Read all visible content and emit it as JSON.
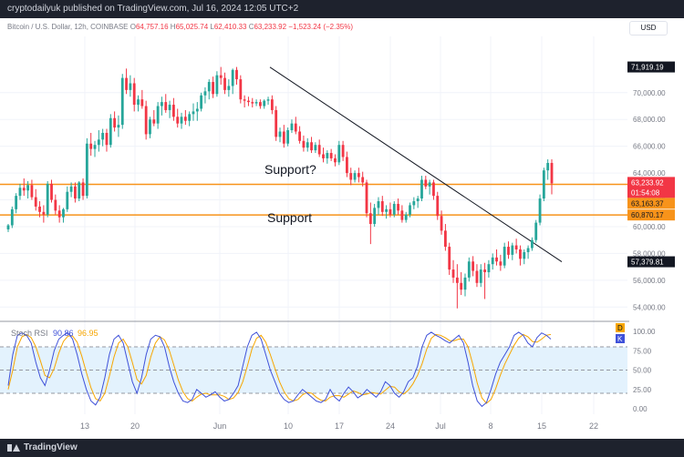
{
  "header": {
    "published_text": "cryptodailyuk published on TradingView.com, Jul 16, 2024 12:05 UTC+2"
  },
  "footer": {
    "brand": "TradingView"
  },
  "symbol_bar": {
    "title": "Bitcoin / U.S. Dollar, 12h, COINBASE",
    "o_label": "O",
    "o_value": "64,757.16",
    "h_label": "H",
    "h_value": "65,025.74",
    "l_label": "L",
    "l_value": "62,410.33",
    "c_label": "C",
    "c_value": "63,233.92",
    "change": "−1,523.24 (−2.35%)"
  },
  "currency_button": "USD",
  "colors": {
    "up": "#26a69a",
    "down": "#f23645",
    "support": "#f7931a",
    "stoch_d": "#f7a600",
    "stoch_k": "#3f51d9",
    "rsi_band": "#e3f2fd"
  },
  "chart_data": [
    {
      "type": "candlestick",
      "title": "Bitcoin / U.S. Dollar, 12h, COINBASE",
      "ylim": [
        53000,
        74200
      ],
      "y_ticks": [
        "70,000.00",
        "68,000.00",
        "66,000.00",
        "64,000.00",
        "62,000.00",
        "60,000.00",
        "58,000.00",
        "56,000.00",
        "54,000.00"
      ],
      "x_ticks": [
        "13",
        "20",
        "Jun",
        "10",
        "17",
        "24",
        "Jul",
        "8",
        "15",
        "22"
      ],
      "price_labels": {
        "high": "71,919.19",
        "last": "63,233.92",
        "countdown": "01:54:08",
        "second": "63,163.37",
        "support": "60,870.17",
        "low": "57,379.81"
      },
      "annotations": [
        "Support?",
        "Support"
      ],
      "support_levels": [
        63160,
        60870
      ],
      "trendline": [
        {
          "x": "Jun 5",
          "y": 71900
        },
        {
          "x": "Jul 17",
          "y": 57380
        }
      ],
      "candles": [
        [
          59800,
          60200,
          59600,
          60100
        ],
        [
          60100,
          61500,
          59900,
          61300
        ],
        [
          61300,
          62500,
          61000,
          62300
        ],
        [
          62300,
          63200,
          62000,
          62900
        ],
        [
          62900,
          63600,
          62300,
          62700
        ],
        [
          62700,
          63400,
          62100,
          63100
        ],
        [
          63100,
          63500,
          62000,
          62200
        ],
        [
          62200,
          62800,
          61200,
          61500
        ],
        [
          61500,
          61900,
          60700,
          61100
        ],
        [
          61100,
          61600,
          60300,
          60900
        ],
        [
          60900,
          63400,
          60700,
          63200
        ],
        [
          63200,
          63500,
          61800,
          62000
        ],
        [
          62000,
          62400,
          60900,
          61200
        ],
        [
          61200,
          61600,
          60300,
          60700
        ],
        [
          60700,
          61400,
          60300,
          61300
        ],
        [
          61300,
          63000,
          61100,
          62600
        ],
        [
          62600,
          63300,
          62200,
          63000
        ],
        [
          63000,
          63300,
          61800,
          62100
        ],
        [
          62100,
          63400,
          61900,
          63300
        ],
        [
          63300,
          63600,
          62000,
          62300
        ],
        [
          62300,
          66600,
          62100,
          66200
        ],
        [
          66200,
          67000,
          65300,
          65800
        ],
        [
          65800,
          66400,
          65200,
          66100
        ],
        [
          66100,
          67200,
          65600,
          66500
        ],
        [
          66500,
          67300,
          66000,
          67000
        ],
        [
          67000,
          67300,
          65600,
          66100
        ],
        [
          66100,
          68400,
          65900,
          68100
        ],
        [
          68100,
          68600,
          67100,
          67400
        ],
        [
          67400,
          68300,
          66700,
          67600
        ],
        [
          67600,
          71400,
          67300,
          71100
        ],
        [
          71100,
          71800,
          69900,
          70200
        ],
        [
          70200,
          71300,
          69700,
          70700
        ],
        [
          70700,
          71100,
          68600,
          69100
        ],
        [
          69100,
          69800,
          68600,
          69500
        ],
        [
          69500,
          70200,
          68800,
          69000
        ],
        [
          69000,
          69400,
          66500,
          66900
        ],
        [
          66900,
          68200,
          66600,
          68000
        ],
        [
          68000,
          68700,
          67500,
          67700
        ],
        [
          67700,
          69300,
          67300,
          69000
        ],
        [
          69000,
          69700,
          68300,
          69300
        ],
        [
          69300,
          69900,
          68500,
          68700
        ],
        [
          68700,
          69400,
          68100,
          69100
        ],
        [
          69100,
          69600,
          67900,
          68200
        ],
        [
          68200,
          68800,
          67400,
          67700
        ],
        [
          67700,
          68500,
          67300,
          68200
        ],
        [
          68200,
          68700,
          67600,
          67900
        ],
        [
          67900,
          68600,
          67500,
          68400
        ],
        [
          68400,
          69200,
          67900,
          68600
        ],
        [
          68600,
          69300,
          67900,
          68800
        ],
        [
          68800,
          70000,
          68600,
          69800
        ],
        [
          69800,
          70400,
          69200,
          70100
        ],
        [
          70100,
          71000,
          69500,
          70800
        ],
        [
          70800,
          71200,
          69600,
          69900
        ],
        [
          69900,
          71600,
          69700,
          71300
        ],
        [
          71300,
          71919,
          70600,
          71100
        ],
        [
          71100,
          71500,
          69900,
          70200
        ],
        [
          70200,
          71000,
          69700,
          70500
        ],
        [
          70500,
          71800,
          69900,
          71700
        ],
        [
          71700,
          71919,
          70600,
          71000
        ],
        [
          71000,
          71300,
          69200,
          69500
        ],
        [
          69500,
          69800,
          68900,
          69400
        ],
        [
          69400,
          69700,
          69000,
          69300
        ],
        [
          69300,
          69600,
          68900,
          69200
        ],
        [
          69200,
          69500,
          69000,
          69300
        ],
        [
          69300,
          69500,
          68800,
          69000
        ],
        [
          69000,
          69500,
          68800,
          69400
        ],
        [
          69400,
          69700,
          69100,
          69500
        ],
        [
          69500,
          69800,
          68400,
          68700
        ],
        [
          68700,
          69000,
          66400,
          66700
        ],
        [
          66700,
          67400,
          66300,
          67100
        ],
        [
          67100,
          67600,
          65900,
          66200
        ],
        [
          66200,
          67400,
          66000,
          67200
        ],
        [
          67200,
          68000,
          67000,
          67700
        ],
        [
          67700,
          68200,
          66900,
          67100
        ],
        [
          67100,
          67500,
          66200,
          66400
        ],
        [
          66400,
          66800,
          65600,
          65900
        ],
        [
          65900,
          66600,
          65600,
          66300
        ],
        [
          66300,
          66700,
          65500,
          65700
        ],
        [
          65700,
          66300,
          65500,
          66100
        ],
        [
          66100,
          66500,
          65200,
          65400
        ],
        [
          65400,
          65900,
          64800,
          65100
        ],
        [
          65100,
          65700,
          64700,
          65500
        ],
        [
          65500,
          65800,
          64900,
          65100
        ],
        [
          65100,
          65400,
          64500,
          64800
        ],
        [
          64800,
          66400,
          64600,
          66100
        ],
        [
          66100,
          66400,
          64900,
          65200
        ],
        [
          65200,
          65600,
          63700,
          64000
        ],
        [
          64000,
          64400,
          63100,
          63500
        ],
        [
          63500,
          64200,
          63300,
          64000
        ],
        [
          64000,
          64400,
          63300,
          63700
        ],
        [
          63700,
          64100,
          63000,
          63300
        ],
        [
          63300,
          63500,
          60700,
          61000
        ],
        [
          61000,
          61800,
          58700,
          60200
        ],
        [
          60200,
          61700,
          60000,
          61400
        ],
        [
          61400,
          62200,
          60900,
          61900
        ],
        [
          61900,
          62300,
          60800,
          61100
        ],
        [
          61100,
          61600,
          60600,
          61300
        ],
        [
          61300,
          61800,
          60700,
          60900
        ],
        [
          60900,
          61900,
          60700,
          61700
        ],
        [
          61700,
          62100,
          60900,
          61200
        ],
        [
          61200,
          61600,
          60300,
          60500
        ],
        [
          60500,
          61100,
          60300,
          60900
        ],
        [
          60900,
          61800,
          60700,
          61600
        ],
        [
          61600,
          62200,
          61300,
          61900
        ],
        [
          61900,
          62300,
          61400,
          62100
        ],
        [
          62100,
          63800,
          61900,
          63500
        ],
        [
          63500,
          63800,
          62800,
          63000
        ],
        [
          63000,
          63500,
          62400,
          63300
        ],
        [
          63300,
          63500,
          62000,
          62300
        ],
        [
          62300,
          62600,
          60500,
          60800
        ],
        [
          60800,
          61200,
          59400,
          59700
        ],
        [
          59700,
          60200,
          58200,
          58500
        ],
        [
          58500,
          58800,
          56400,
          56800
        ],
        [
          56800,
          57500,
          55800,
          56200
        ],
        [
          56200,
          57200,
          53900,
          55800
        ],
        [
          55800,
          56600,
          54900,
          55300
        ],
        [
          55300,
          56500,
          54800,
          56200
        ],
        [
          56200,
          57700,
          55900,
          57400
        ],
        [
          57400,
          57800,
          56300,
          56700
        ],
        [
          56700,
          57200,
          55500,
          55800
        ],
        [
          55800,
          57200,
          55500,
          56800
        ],
        [
          56800,
          57300,
          54600,
          56600
        ],
        [
          56600,
          57500,
          56200,
          57200
        ],
        [
          57200,
          58000,
          56800,
          57700
        ],
        [
          57700,
          58300,
          57100,
          57400
        ],
        [
          57400,
          57900,
          56700,
          57100
        ],
        [
          57100,
          58800,
          56900,
          58500
        ],
        [
          58500,
          58900,
          57600,
          57900
        ],
        [
          57900,
          58800,
          57500,
          58600
        ],
        [
          58600,
          59100,
          58000,
          58300
        ],
        [
          58300,
          58600,
          57100,
          57600
        ],
        [
          57600,
          58300,
          57200,
          58100
        ],
        [
          58100,
          58600,
          57600,
          58400
        ],
        [
          58400,
          59200,
          58200,
          59000
        ],
        [
          59000,
          60500,
          58800,
          60300
        ],
        [
          60300,
          62400,
          60100,
          62100
        ],
        [
          62100,
          64400,
          61900,
          64200
        ],
        [
          64200,
          65025,
          63500,
          64757
        ],
        [
          64757,
          65025,
          62410,
          63234
        ]
      ]
    },
    {
      "type": "line",
      "title": "Stoch RSI",
      "ylim": [
        0,
        100
      ],
      "y_ticks": [
        "100.00",
        "75.00",
        "50.00",
        "25.00",
        "0.00"
      ],
      "band": [
        20,
        80
      ],
      "series": [
        {
          "name": "K",
          "value_label": "90.86",
          "values": [
            30,
            70,
            95,
            98,
            95,
            85,
            60,
            40,
            30,
            50,
            75,
            90,
            95,
            98,
            90,
            70,
            45,
            25,
            10,
            5,
            15,
            40,
            70,
            90,
            95,
            85,
            60,
            35,
            20,
            40,
            70,
            90,
            95,
            93,
            80,
            55,
            35,
            20,
            10,
            8,
            12,
            25,
            20,
            15,
            18,
            22,
            15,
            10,
            12,
            20,
            30,
            55,
            80,
            95,
            99,
            90,
            70,
            50,
            35,
            20,
            12,
            8,
            10,
            18,
            25,
            20,
            15,
            10,
            8,
            12,
            25,
            15,
            10,
            20,
            28,
            22,
            14,
            18,
            25,
            20,
            15,
            22,
            35,
            30,
            20,
            15,
            22,
            35,
            40,
            55,
            80,
            95,
            99,
            95,
            92,
            88,
            85,
            90,
            95,
            85,
            60,
            30,
            10,
            3,
            8,
            25,
            45,
            60,
            70,
            80,
            95,
            99,
            95,
            85,
            80,
            92,
            98,
            95,
            90
          ]
        },
        {
          "name": "D",
          "value_label": "96.95",
          "values": [
            25,
            50,
            80,
            93,
            96,
            92,
            80,
            62,
            43,
            40,
            52,
            72,
            87,
            94,
            94,
            86,
            68,
            47,
            27,
            13,
            10,
            20,
            42,
            67,
            85,
            90,
            80,
            60,
            38,
            32,
            43,
            67,
            85,
            93,
            89,
            76,
            57,
            37,
            22,
            13,
            10,
            15,
            19,
            20,
            18,
            18,
            18,
            16,
            12,
            14,
            21,
            35,
            55,
            77,
            91,
            95,
            86,
            70,
            52,
            35,
            22,
            13,
            10,
            12,
            18,
            21,
            20,
            15,
            11,
            10,
            15,
            17,
            17,
            15,
            19,
            23,
            21,
            18,
            19,
            21,
            20,
            19,
            24,
            29,
            28,
            22,
            19,
            24,
            32,
            43,
            58,
            77,
            91,
            96,
            95,
            92,
            88,
            88,
            90,
            90,
            80,
            58,
            33,
            14,
            7,
            12,
            26,
            43,
            58,
            70,
            82,
            91,
            96,
            93,
            87,
            86,
            90,
            95,
            96
          ]
        }
      ]
    }
  ]
}
